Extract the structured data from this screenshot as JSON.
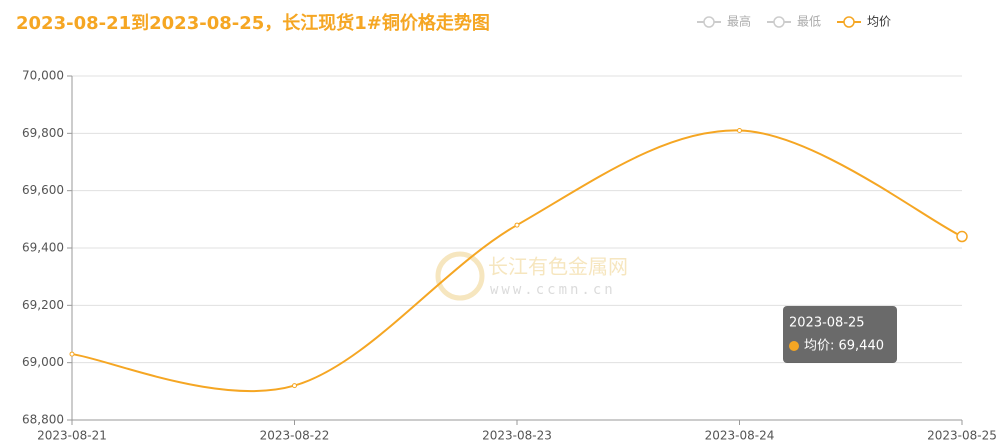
{
  "chart_data": {
    "type": "line",
    "title": "2023-08-21到2023-08-25，长江现货1#铜价格走势图",
    "categories": [
      "2023-08-21",
      "2023-08-22",
      "2023-08-23",
      "2023-08-24",
      "2023-08-25"
    ],
    "series": [
      {
        "name": "最高",
        "color": "#cccccc",
        "visible": false,
        "values": [
          null,
          null,
          null,
          null,
          null
        ]
      },
      {
        "name": "最低",
        "color": "#cccccc",
        "visible": false,
        "values": [
          null,
          null,
          null,
          null,
          null
        ]
      },
      {
        "name": "均价",
        "color": "#f5a623",
        "visible": true,
        "values": [
          69030,
          68920,
          69480,
          69810,
          69440
        ]
      }
    ],
    "ylim": [
      68800,
      70000
    ],
    "yticks": [
      {
        "value": 68800,
        "label": "68,800"
      },
      {
        "value": 69000,
        "label": "69,000"
      },
      {
        "value": 69200,
        "label": "69,200"
      },
      {
        "value": 69400,
        "label": "69,400"
      },
      {
        "value": 69600,
        "label": "69,600"
      },
      {
        "value": 69800,
        "label": "69,800"
      },
      {
        "value": 70000,
        "label": "70,000"
      }
    ],
    "grid": true,
    "smooth": true,
    "tooltip": {
      "title": "2023-08-25",
      "text": "均价: 69,440"
    },
    "watermark": {
      "name": "长江有色金属网",
      "url": "www.ccmn.cn"
    }
  }
}
